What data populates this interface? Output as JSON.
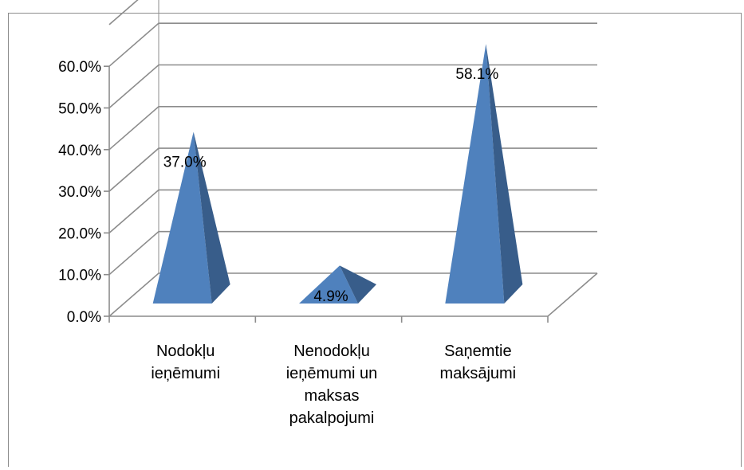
{
  "chart_data": {
    "type": "bar",
    "style": "3d-pyramid",
    "title": "",
    "xlabel": "",
    "ylabel": "",
    "categories": [
      [
        "Nodokļu",
        "ieņēmumi"
      ],
      [
        "Nenodokļu",
        "ieņēmumi un",
        "maksas",
        "pakalpojumi"
      ],
      [
        "Saņemtie",
        "maksājumi"
      ]
    ],
    "values": [
      37.0,
      4.9,
      58.1
    ],
    "data_labels": [
      "37.0%",
      "4.9%",
      "58.1%"
    ],
    "yticks": [
      "0.0%",
      "10.0%",
      "20.0%",
      "30.0%",
      "40.0%",
      "50.0%",
      "60.0%"
    ],
    "ylim": [
      0,
      70
    ],
    "grid": true,
    "legend": "none",
    "colors": {
      "front": "#4f81bd",
      "side": "#385d8a",
      "grid": "#8c8c8c",
      "axis": "#8c8c8c"
    }
  }
}
